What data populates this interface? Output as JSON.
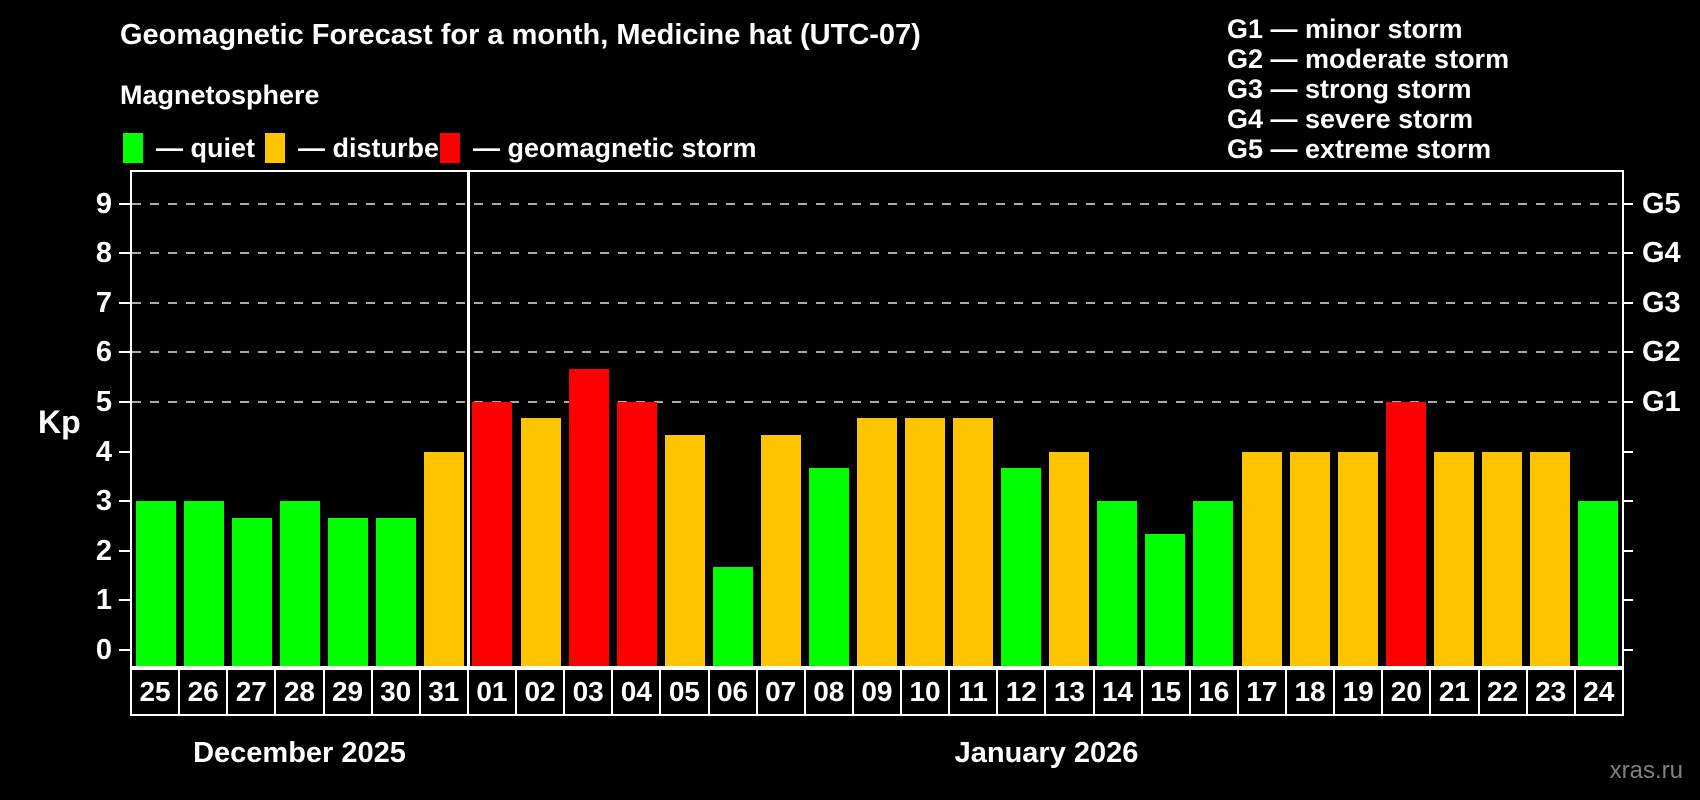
{
  "title": "Geomagnetic Forecast for a month, Medicine hat (UTC-07)",
  "subtitle": "Magnetosphere",
  "legend": [
    {
      "label": "— quiet",
      "status": "quiet",
      "color": "#00ff00"
    },
    {
      "label": "— disturbed",
      "status": "disturbed",
      "color": "#ffc400"
    },
    {
      "label": "— geomagnetic storm",
      "status": "storm",
      "color": "#ff0000"
    }
  ],
  "storm_scale_legend": [
    "G1 — minor storm",
    "G2 — moderate storm",
    "G3 — strong storm",
    "G4 — severe storm",
    "G5 — extreme storm"
  ],
  "watermark": "xras.ru",
  "chart_data": {
    "type": "bar",
    "ylabel": "Kp",
    "ylim": [
      0,
      9
    ],
    "yticks": [
      0,
      1,
      2,
      3,
      4,
      5,
      6,
      7,
      8,
      9
    ],
    "gridlines_at_kp": [
      5,
      6,
      7,
      8,
      9
    ],
    "grid_style": "dashed",
    "legend_position": "top",
    "right_axis": [
      {
        "label": "G1",
        "kp": 5
      },
      {
        "label": "G2",
        "kp": 6
      },
      {
        "label": "G3",
        "kp": 7
      },
      {
        "label": "G4",
        "kp": 8
      },
      {
        "label": "G5",
        "kp": 9
      }
    ],
    "status_colors": {
      "quiet": "#00ff00",
      "disturbed": "#ffc400",
      "storm": "#ff0000"
    },
    "months": [
      {
        "label": "December 2025",
        "days": 7
      },
      {
        "label": "January 2026",
        "days": 24
      }
    ],
    "days": [
      {
        "day": "25",
        "kp": 3.0,
        "status": "quiet"
      },
      {
        "day": "26",
        "kp": 3.0,
        "status": "quiet"
      },
      {
        "day": "27",
        "kp": 2.67,
        "status": "quiet"
      },
      {
        "day": "28",
        "kp": 3.0,
        "status": "quiet"
      },
      {
        "day": "29",
        "kp": 2.67,
        "status": "quiet"
      },
      {
        "day": "30",
        "kp": 2.67,
        "status": "quiet"
      },
      {
        "day": "31",
        "kp": 4.0,
        "status": "disturbed"
      },
      {
        "day": "01",
        "kp": 5.0,
        "status": "storm"
      },
      {
        "day": "02",
        "kp": 4.67,
        "status": "disturbed"
      },
      {
        "day": "03",
        "kp": 5.67,
        "status": "storm"
      },
      {
        "day": "04",
        "kp": 5.0,
        "status": "storm"
      },
      {
        "day": "05",
        "kp": 4.33,
        "status": "disturbed"
      },
      {
        "day": "06",
        "kp": 1.67,
        "status": "quiet"
      },
      {
        "day": "07",
        "kp": 4.33,
        "status": "disturbed"
      },
      {
        "day": "08",
        "kp": 3.67,
        "status": "quiet"
      },
      {
        "day": "09",
        "kp": 4.67,
        "status": "disturbed"
      },
      {
        "day": "10",
        "kp": 4.67,
        "status": "disturbed"
      },
      {
        "day": "11",
        "kp": 4.67,
        "status": "disturbed"
      },
      {
        "day": "12",
        "kp": 3.67,
        "status": "quiet"
      },
      {
        "day": "13",
        "kp": 4.0,
        "status": "disturbed"
      },
      {
        "day": "14",
        "kp": 3.0,
        "status": "quiet"
      },
      {
        "day": "15",
        "kp": 2.33,
        "status": "quiet"
      },
      {
        "day": "16",
        "kp": 3.0,
        "status": "quiet"
      },
      {
        "day": "17",
        "kp": 4.0,
        "status": "disturbed"
      },
      {
        "day": "18",
        "kp": 4.0,
        "status": "disturbed"
      },
      {
        "day": "19",
        "kp": 4.0,
        "status": "disturbed"
      },
      {
        "day": "20",
        "kp": 5.0,
        "status": "storm"
      },
      {
        "day": "21",
        "kp": 4.0,
        "status": "disturbed"
      },
      {
        "day": "22",
        "kp": 4.0,
        "status": "disturbed"
      },
      {
        "day": "23",
        "kp": 4.0,
        "status": "disturbed"
      },
      {
        "day": "24",
        "kp": 3.0,
        "status": "quiet"
      }
    ]
  }
}
